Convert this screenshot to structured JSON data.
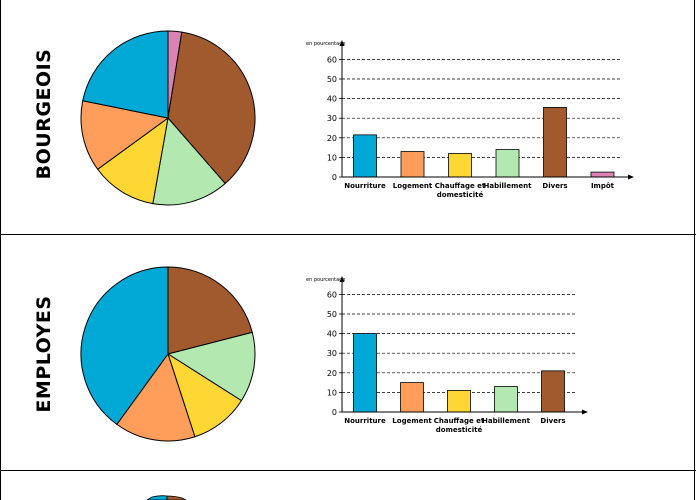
{
  "chart_data": [
    {
      "type": "bar",
      "row_label": "BOURGEOIS",
      "unit_label": "en pourcentage",
      "categories": [
        "Nourriture",
        "Logement",
        "Chauffage et domesticité",
        "Habillement",
        "Divers",
        "Impôt"
      ],
      "values": [
        21.5,
        13,
        12,
        14,
        35.5,
        2.5
      ],
      "colors": [
        "#00a8d6",
        "#ff9e5a",
        "#ffd735",
        "#b3e9b0",
        "#a15a2e",
        "#da84b5"
      ],
      "ylim": [
        0,
        60
      ],
      "yticks": [
        0,
        10,
        20,
        30,
        40,
        50,
        60
      ],
      "grid": true,
      "pie": {
        "order": [
          "Impôt",
          "Divers",
          "Habillement",
          "Chauffage et domesticité",
          "Logement",
          "Nourriture"
        ]
      }
    },
    {
      "type": "bar",
      "row_label": "EMPLOYES",
      "unit_label": "en pourcentage",
      "categories": [
        "Nourriture",
        "Logement",
        "Chauffage et domesticité",
        "Habillement",
        "Divers"
      ],
      "values": [
        40,
        15,
        11,
        13,
        21
      ],
      "colors": [
        "#00a8d6",
        "#ff9e5a",
        "#ffd735",
        "#b3e9b0",
        "#a15a2e"
      ],
      "ylim": [
        0,
        60
      ],
      "yticks": [
        0,
        10,
        20,
        30,
        40,
        50,
        60
      ],
      "grid": true,
      "pie": {
        "order": [
          "Divers",
          "Habillement",
          "Chauffage et domesticité",
          "Logement",
          "Nourriture"
        ]
      }
    }
  ]
}
